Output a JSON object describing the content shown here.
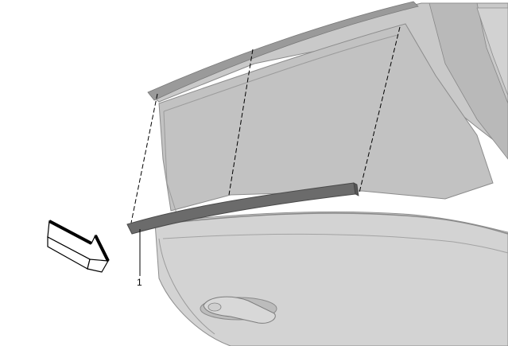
{
  "diagram": {
    "callouts": [
      {
        "label": "1"
      }
    ],
    "colors": {
      "body_panel": "#c8c8c8",
      "body_shadow": "#a9a9a9",
      "body_highlight": "#dcdcdc",
      "outline": "#7f7f7f",
      "weatherstrip": "#6b6b6b",
      "weatherstrip_edge": "#4a4a4a",
      "arrow_fill": "#ffffff",
      "arrow_stroke": "#000000",
      "leader_line": "#000000"
    }
  }
}
